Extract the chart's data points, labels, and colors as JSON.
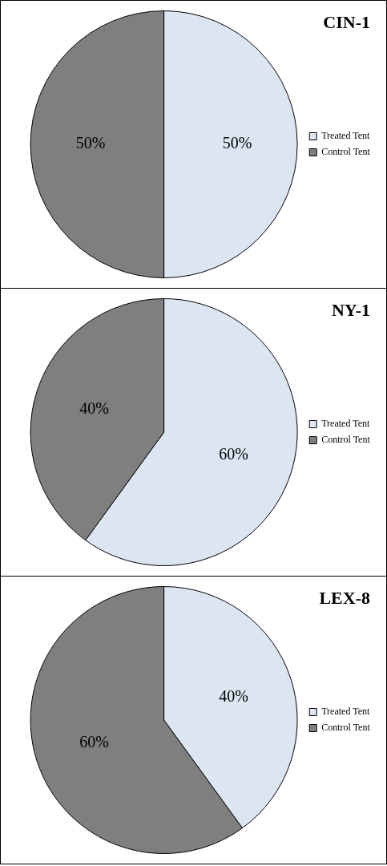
{
  "chart_data": [
    {
      "type": "pie",
      "title": "CIN-1",
      "categories": [
        "Treated Tent",
        "Control Tent"
      ],
      "values": [
        50,
        50
      ],
      "value_labels": [
        "50%",
        "50%"
      ],
      "colors": [
        "#dce6f2",
        "#7f7f7f"
      ],
      "legend": "right"
    },
    {
      "type": "pie",
      "title": "NY-1",
      "categories": [
        "Treated Tent",
        "Control Tent"
      ],
      "values": [
        60,
        40
      ],
      "value_labels": [
        "60%",
        "40%"
      ],
      "colors": [
        "#dce6f2",
        "#7f7f7f"
      ],
      "legend": "right"
    },
    {
      "type": "pie",
      "title": "LEX-8",
      "categories": [
        "Treated Tent",
        "Control Tent"
      ],
      "values": [
        40,
        60
      ],
      "value_labels": [
        "40%",
        "60%"
      ],
      "colors": [
        "#dce6f2",
        "#7f7f7f"
      ],
      "legend": "right"
    }
  ]
}
